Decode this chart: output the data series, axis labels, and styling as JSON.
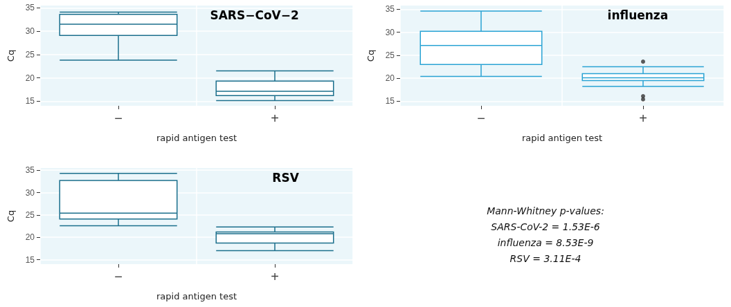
{
  "chart_data": [
    {
      "type": "box",
      "title": "SARS−CoV−2",
      "xlabel": "rapid antigen test",
      "ylabel": "Cq",
      "categories": [
        "−",
        "+"
      ],
      "ylim": [
        14,
        35.5
      ],
      "yticks": [
        15,
        20,
        25,
        30,
        35
      ],
      "grid": true,
      "series": [
        {
          "color": "#1b6f8c",
          "boxes": [
            {
              "low": 23.8,
              "q1": 29.1,
              "median": 31.5,
              "q3": 33.6,
              "high": 34.1
            },
            {
              "low": 15.1,
              "q1": 16.2,
              "median": 17.1,
              "q3": 19.3,
              "high": 21.5
            }
          ]
        }
      ]
    },
    {
      "type": "box",
      "title": "influenza",
      "xlabel": "rapid antigen test",
      "ylabel": "Cq",
      "categories": [
        "−",
        "+"
      ],
      "ylim": [
        14,
        35.8
      ],
      "yticks": [
        15,
        20,
        25,
        30,
        35
      ],
      "grid": true,
      "series": [
        {
          "color": "#2aa3d4",
          "boxes": [
            {
              "low": 20.4,
              "q1": 23.0,
              "median": 27.1,
              "q3": 30.2,
              "high": 34.6
            },
            {
              "low": 18.2,
              "q1": 19.5,
              "median": 20.1,
              "q3": 21.0,
              "high": 22.5,
              "outliers": [
                23.6,
                16.1,
                15.4
              ]
            }
          ]
        }
      ]
    },
    {
      "type": "box",
      "title": "RSV",
      "xlabel": "rapid antigen test",
      "ylabel": "Cq",
      "categories": [
        "−",
        "+"
      ],
      "ylim": [
        14,
        35.5
      ],
      "yticks": [
        15,
        20,
        25,
        30,
        35
      ],
      "grid": true,
      "series": [
        {
          "color": "#1b6f8c",
          "boxes": [
            {
              "low": 22.6,
              "q1": 24.1,
              "median": 25.4,
              "q3": 32.7,
              "high": 34.3
            },
            {
              "low": 17.0,
              "q1": 18.7,
              "median": 20.8,
              "q3": 21.2,
              "high": 22.3
            }
          ]
        }
      ]
    },
    {
      "type": "other",
      "annotations": [
        "Mann-Whitney p-values:",
        "SARS-CoV-2 = 1.53E-6",
        "influenza = 8.53E-9",
        "RSV = 3.11E-4"
      ]
    }
  ]
}
